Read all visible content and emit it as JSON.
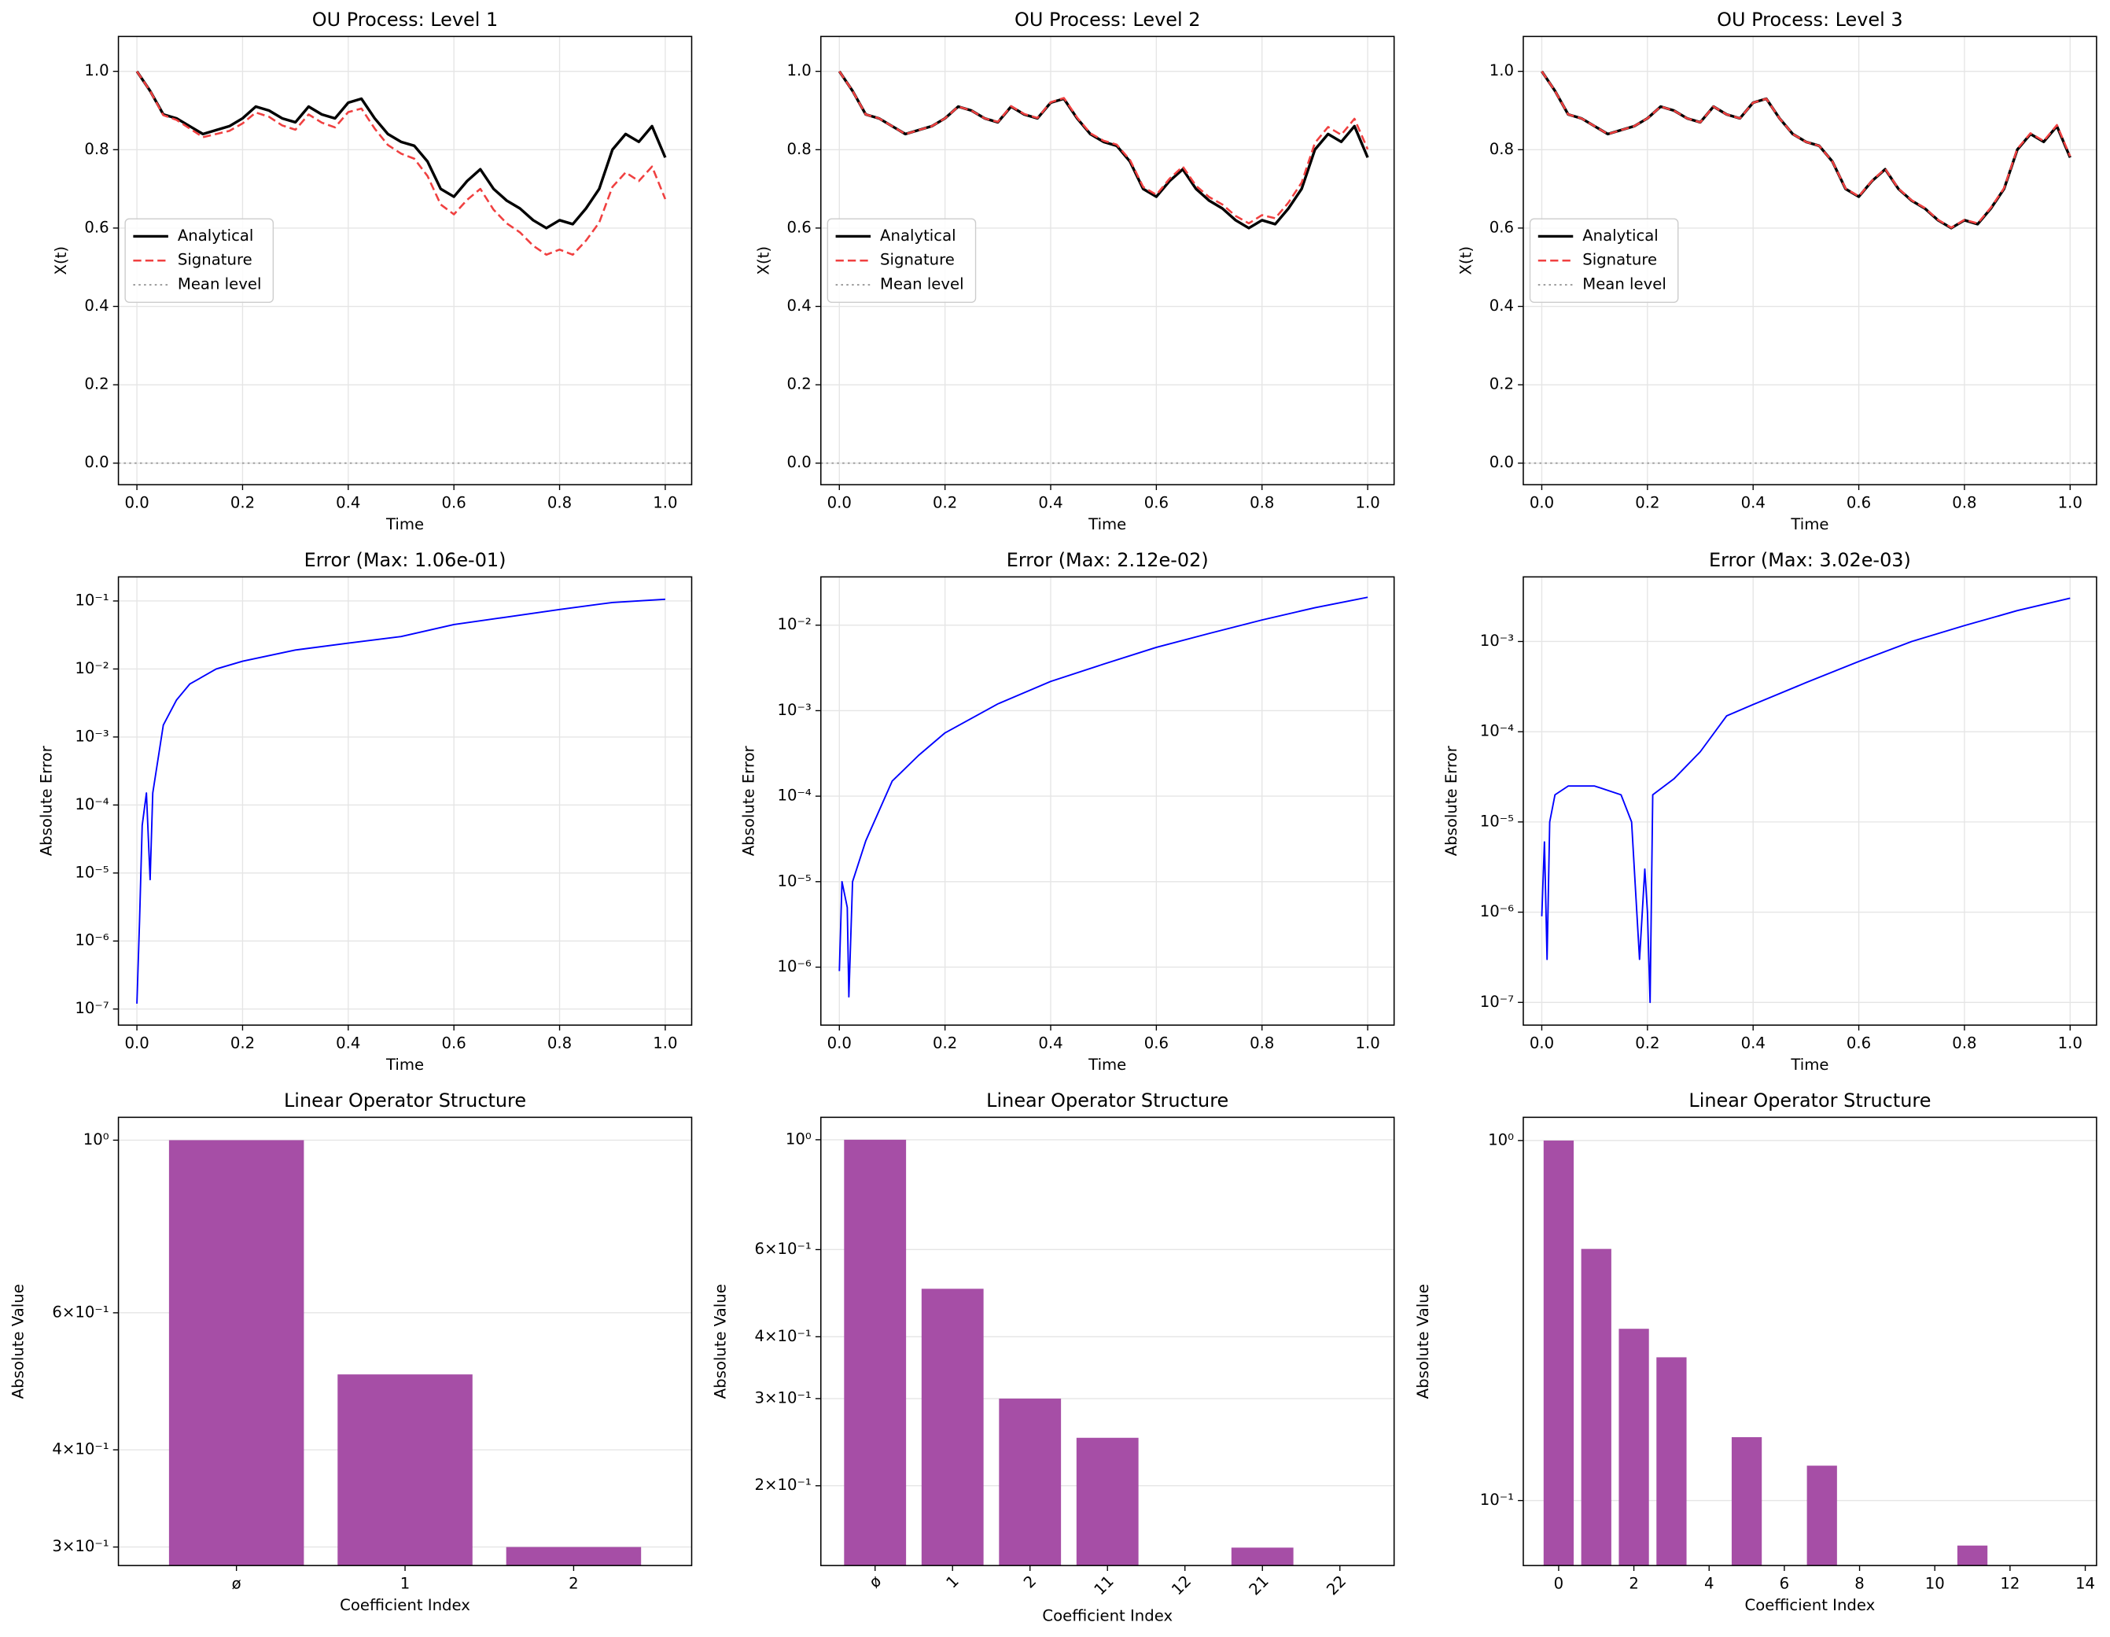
{
  "chart_data": [
    {
      "type": "line",
      "title": "OU Process: Level 1",
      "xlabel": "Time",
      "ylabel": "X(t)",
      "x": [
        0,
        0.025,
        0.05,
        0.075,
        0.1,
        0.125,
        0.15,
        0.175,
        0.2,
        0.225,
        0.25,
        0.275,
        0.3,
        0.325,
        0.35,
        0.375,
        0.4,
        0.425,
        0.45,
        0.475,
        0.5,
        0.525,
        0.55,
        0.575,
        0.6,
        0.625,
        0.65,
        0.675,
        0.7,
        0.725,
        0.75,
        0.775,
        0.8,
        0.825,
        0.85,
        0.875,
        0.9,
        0.925,
        0.95,
        0.975,
        1
      ],
      "series": [
        {
          "name": "Analytical",
          "color": "#000000",
          "dash": "solid",
          "values": [
            1.0,
            0.95,
            0.89,
            0.88,
            0.86,
            0.84,
            0.85,
            0.86,
            0.88,
            0.91,
            0.9,
            0.88,
            0.87,
            0.91,
            0.89,
            0.88,
            0.92,
            0.93,
            0.88,
            0.84,
            0.82,
            0.81,
            0.77,
            0.7,
            0.68,
            0.72,
            0.75,
            0.7,
            0.67,
            0.65,
            0.62,
            0.6,
            0.62,
            0.61,
            0.65,
            0.7,
            0.8,
            0.84,
            0.82,
            0.86,
            0.78
          ]
        },
        {
          "name": "Signature",
          "color": "#f04040",
          "dash": "dashed",
          "values": [
            1.0,
            0.95,
            0.888,
            0.876,
            0.854,
            0.832,
            0.84,
            0.848,
            0.867,
            0.895,
            0.884,
            0.862,
            0.851,
            0.89,
            0.869,
            0.857,
            0.896,
            0.905,
            0.854,
            0.812,
            0.79,
            0.777,
            0.733,
            0.66,
            0.635,
            0.672,
            0.7,
            0.647,
            0.612,
            0.589,
            0.555,
            0.532,
            0.545,
            0.532,
            0.568,
            0.614,
            0.705,
            0.742,
            0.72,
            0.757,
            0.674
          ]
        }
      ],
      "reference_line": {
        "name": "Mean level",
        "color": "#a0a0a0",
        "value": 0
      },
      "xlim": [
        -0.035,
        1.05
      ],
      "ylim": [
        -0.055,
        1.089
      ],
      "xticks": [
        {
          "value": 0,
          "label": "0.0"
        },
        0.2,
        0.4,
        0.6,
        0.8,
        {
          "value": 1,
          "label": "1.0"
        }
      ],
      "yticks": [
        {
          "value": 0,
          "label": "0.0"
        },
        0.2,
        0.4,
        0.6,
        0.8,
        {
          "value": 1,
          "label": "1.0"
        }
      ],
      "log": false,
      "grid": "both",
      "legend": "center left"
    },
    {
      "type": "line",
      "title": "OU Process: Level 2",
      "xlabel": "Time",
      "ylabel": "X(t)",
      "x": [
        0,
        0.025,
        0.05,
        0.075,
        0.1,
        0.125,
        0.15,
        0.175,
        0.2,
        0.225,
        0.25,
        0.275,
        0.3,
        0.325,
        0.35,
        0.375,
        0.4,
        0.425,
        0.45,
        0.475,
        0.5,
        0.525,
        0.55,
        0.575,
        0.6,
        0.625,
        0.65,
        0.675,
        0.7,
        0.725,
        0.75,
        0.775,
        0.8,
        0.825,
        0.85,
        0.875,
        0.9,
        0.925,
        0.95,
        0.975,
        1
      ],
      "series": [
        {
          "name": "Analytical",
          "color": "#000000",
          "dash": "solid",
          "values": [
            1.0,
            0.95,
            0.89,
            0.88,
            0.86,
            0.84,
            0.85,
            0.86,
            0.88,
            0.91,
            0.9,
            0.88,
            0.87,
            0.91,
            0.89,
            0.88,
            0.92,
            0.93,
            0.88,
            0.84,
            0.82,
            0.81,
            0.77,
            0.7,
            0.68,
            0.72,
            0.75,
            0.7,
            0.67,
            0.65,
            0.62,
            0.6,
            0.62,
            0.61,
            0.65,
            0.7,
            0.8,
            0.84,
            0.82,
            0.86,
            0.78
          ]
        },
        {
          "name": "Signature",
          "color": "#f04040",
          "dash": "dashed",
          "values": [
            1.0,
            0.95,
            0.89,
            0.88,
            0.86,
            0.84,
            0.85,
            0.86,
            0.88,
            0.91,
            0.9,
            0.88,
            0.871,
            0.911,
            0.891,
            0.881,
            0.921,
            0.932,
            0.882,
            0.842,
            0.823,
            0.813,
            0.774,
            0.705,
            0.685,
            0.726,
            0.757,
            0.708,
            0.679,
            0.66,
            0.631,
            0.612,
            0.633,
            0.625,
            0.665,
            0.716,
            0.817,
            0.858,
            0.838,
            0.879,
            0.801
          ]
        }
      ],
      "reference_line": {
        "name": "Mean level",
        "color": "#a0a0a0",
        "value": 0
      },
      "xlim": [
        -0.035,
        1.05
      ],
      "ylim": [
        -0.055,
        1.089
      ],
      "xticks": [
        {
          "value": 0,
          "label": "0.0"
        },
        0.2,
        0.4,
        0.6,
        0.8,
        {
          "value": 1,
          "label": "1.0"
        }
      ],
      "yticks": [
        {
          "value": 0,
          "label": "0.0"
        },
        0.2,
        0.4,
        0.6,
        0.8,
        {
          "value": 1,
          "label": "1.0"
        }
      ],
      "log": false,
      "grid": "both",
      "legend": "center left"
    },
    {
      "type": "line",
      "title": "OU Process: Level 3",
      "xlabel": "Time",
      "ylabel": "X(t)",
      "x": [
        0,
        0.025,
        0.05,
        0.075,
        0.1,
        0.125,
        0.15,
        0.175,
        0.2,
        0.225,
        0.25,
        0.275,
        0.3,
        0.325,
        0.35,
        0.375,
        0.4,
        0.425,
        0.45,
        0.475,
        0.5,
        0.525,
        0.55,
        0.575,
        0.6,
        0.625,
        0.65,
        0.675,
        0.7,
        0.725,
        0.75,
        0.775,
        0.8,
        0.825,
        0.85,
        0.875,
        0.9,
        0.925,
        0.95,
        0.975,
        1
      ],
      "series": [
        {
          "name": "Analytical",
          "color": "#000000",
          "dash": "solid",
          "values": [
            1.0,
            0.95,
            0.89,
            0.88,
            0.86,
            0.84,
            0.85,
            0.86,
            0.88,
            0.91,
            0.9,
            0.88,
            0.87,
            0.91,
            0.89,
            0.88,
            0.92,
            0.93,
            0.88,
            0.84,
            0.82,
            0.81,
            0.77,
            0.7,
            0.68,
            0.72,
            0.75,
            0.7,
            0.67,
            0.65,
            0.62,
            0.6,
            0.62,
            0.61,
            0.65,
            0.7,
            0.8,
            0.84,
            0.82,
            0.86,
            0.78
          ]
        },
        {
          "name": "Signature",
          "color": "#f04040",
          "dash": "dashed",
          "values": [
            1.0,
            0.95,
            0.89,
            0.88,
            0.86,
            0.84,
            0.85,
            0.86,
            0.88,
            0.91,
            0.9,
            0.88,
            0.87,
            0.91,
            0.89,
            0.88,
            0.92,
            0.93,
            0.88,
            0.84,
            0.82,
            0.81,
            0.77,
            0.701,
            0.681,
            0.721,
            0.751,
            0.701,
            0.671,
            0.651,
            0.621,
            0.601,
            0.621,
            0.612,
            0.652,
            0.702,
            0.802,
            0.842,
            0.822,
            0.863,
            0.783
          ]
        }
      ],
      "reference_line": {
        "name": "Mean level",
        "color": "#a0a0a0",
        "value": 0
      },
      "xlim": [
        -0.035,
        1.05
      ],
      "ylim": [
        -0.055,
        1.089
      ],
      "xticks": [
        {
          "value": 0,
          "label": "0.0"
        },
        0.2,
        0.4,
        0.6,
        0.8,
        {
          "value": 1,
          "label": "1.0"
        }
      ],
      "yticks": [
        {
          "value": 0,
          "label": "0.0"
        },
        0.2,
        0.4,
        0.6,
        0.8,
        {
          "value": 1,
          "label": "1.0"
        }
      ],
      "log": false,
      "grid": "both",
      "legend": "center left"
    },
    {
      "type": "line",
      "title": "Error (Max: 1.06e-01)",
      "xlabel": "Time",
      "ylabel": "Absolute Error",
      "x": [
        0,
        0.005,
        0.01,
        0.018,
        0.025,
        0.03,
        0.05,
        0.075,
        0.1,
        0.15,
        0.2,
        0.3,
        0.4,
        0.5,
        0.6,
        0.7,
        0.8,
        0.9,
        1.0
      ],
      "series": [
        {
          "color": "#0000ff",
          "dash": "solid",
          "values": [
            1.2e-07,
            2e-06,
            5e-05,
            0.00015,
            8e-06,
            0.00015,
            0.0015,
            0.0035,
            0.006,
            0.01,
            0.013,
            0.019,
            0.024,
            0.03,
            0.045,
            0.058,
            0.075,
            0.095,
            0.106
          ]
        }
      ],
      "xlim": [
        -0.035,
        1.05
      ],
      "ylim": [
        5.8e-08,
        0.226
      ],
      "xticks": [
        {
          "value": 0,
          "label": "0.0"
        },
        0.2,
        0.4,
        0.6,
        0.8,
        {
          "value": 1,
          "label": "1.0"
        }
      ],
      "yticks": [
        {
          "value": 1e-07,
          "label": "10⁻⁷"
        },
        {
          "value": 1e-06,
          "label": "10⁻⁶"
        },
        {
          "value": 1e-05,
          "label": "10⁻⁵"
        },
        {
          "value": 0.0001,
          "label": "10⁻⁴"
        },
        {
          "value": 0.001,
          "label": "10⁻³"
        },
        {
          "value": 0.01,
          "label": "10⁻²"
        },
        {
          "value": 0.1,
          "label": "10⁻¹"
        }
      ],
      "log": true,
      "grid": "both"
    },
    {
      "type": "line",
      "title": "Error (Max: 2.12e-02)",
      "xlabel": "Time",
      "ylabel": "Absolute Error",
      "x": [
        0,
        0.005,
        0.015,
        0.018,
        0.025,
        0.05,
        0.1,
        0.15,
        0.2,
        0.3,
        0.4,
        0.5,
        0.6,
        0.7,
        0.8,
        0.9,
        1.0
      ],
      "series": [
        {
          "color": "#0000ff",
          "dash": "solid",
          "values": [
            9e-07,
            1e-05,
            5e-06,
            4.5e-07,
            1e-05,
            3e-05,
            0.00015,
            0.0003,
            0.00055,
            0.0012,
            0.0022,
            0.0035,
            0.0055,
            0.008,
            0.0115,
            0.016,
            0.0212
          ]
        }
      ],
      "xlim": [
        -0.035,
        1.05
      ],
      "ylim": [
        2.1e-07,
        0.0367
      ],
      "xticks": [
        {
          "value": 0,
          "label": "0.0"
        },
        0.2,
        0.4,
        0.6,
        0.8,
        {
          "value": 1,
          "label": "1.0"
        }
      ],
      "yticks": [
        {
          "value": 1e-06,
          "label": "10⁻⁶"
        },
        {
          "value": 1e-05,
          "label": "10⁻⁵"
        },
        {
          "value": 0.0001,
          "label": "10⁻⁴"
        },
        {
          "value": 0.001,
          "label": "10⁻³"
        },
        {
          "value": 0.01,
          "label": "10⁻²"
        }
      ],
      "log": true,
      "grid": "both"
    },
    {
      "type": "line",
      "title": "Error (Max: 3.02e-03)",
      "xlabel": "Time",
      "ylabel": "Absolute Error",
      "x": [
        0,
        0.005,
        0.01,
        0.015,
        0.025,
        0.05,
        0.1,
        0.15,
        0.17,
        0.185,
        0.195,
        0.2,
        0.205,
        0.21,
        0.25,
        0.3,
        0.35,
        0.4,
        0.5,
        0.6,
        0.7,
        0.8,
        0.9,
        1.0
      ],
      "series": [
        {
          "color": "#0000ff",
          "dash": "solid",
          "values": [
            9e-07,
            6e-06,
            3e-07,
            1e-05,
            2e-05,
            2.5e-05,
            2.5e-05,
            2e-05,
            1e-05,
            3e-07,
            3e-06,
            1e-06,
            1e-07,
            2e-05,
            3e-05,
            6e-05,
            0.00015,
            0.0002,
            0.00035,
            0.0006,
            0.001,
            0.0015,
            0.0022,
            0.00302
          ]
        }
      ],
      "xlim": [
        -0.035,
        1.05
      ],
      "ylim": [
        5.6e-08,
        0.0052
      ],
      "xticks": [
        {
          "value": 0,
          "label": "0.0"
        },
        0.2,
        0.4,
        0.6,
        0.8,
        {
          "value": 1,
          "label": "1.0"
        }
      ],
      "yticks": [
        {
          "value": 1e-07,
          "label": "10⁻⁷"
        },
        {
          "value": 1e-06,
          "label": "10⁻⁶"
        },
        {
          "value": 1e-05,
          "label": "10⁻⁵"
        },
        {
          "value": 0.0001,
          "label": "10⁻⁴"
        },
        {
          "value": 0.001,
          "label": "10⁻³"
        }
      ],
      "log": true,
      "grid": "both"
    },
    {
      "type": "bar",
      "title": "Linear Operator Structure",
      "xlabel": "Coefficient Index",
      "ylabel": "Absolute Value",
      "categories": [
        "ø",
        "1",
        "2"
      ],
      "values": [
        1.0,
        0.5,
        0.3
      ],
      "color": "#a64ea6",
      "ylim": [
        0.284,
        1.07
      ],
      "yticks": [
        {
          "value": 0.3,
          "label": "3×10⁻¹"
        },
        {
          "value": 0.4,
          "label": "4×10⁻¹"
        },
        {
          "value": 0.6,
          "label": "6×10⁻¹"
        },
        {
          "value": 1,
          "label": "10⁰"
        }
      ],
      "log": true,
      "grid": "y"
    },
    {
      "type": "bar",
      "title": "Linear Operator Structure",
      "xlabel": "Coefficient Index",
      "ylabel": "Absolute Value",
      "categories": [
        "ø",
        "1",
        "2",
        "11",
        "12",
        "21",
        "22"
      ],
      "values": [
        1.0,
        0.5,
        0.3,
        0.25,
        null,
        0.15,
        null
      ],
      "color": "#a64ea6",
      "ylim": [
        0.138,
        1.11
      ],
      "yticks": [
        {
          "value": 0.2,
          "label": "2×10⁻¹"
        },
        {
          "value": 0.3,
          "label": "3×10⁻¹"
        },
        {
          "value": 0.4,
          "label": "4×10⁻¹"
        },
        {
          "value": 0.6,
          "label": "6×10⁻¹"
        },
        {
          "value": 1,
          "label": "10⁰"
        }
      ],
      "log": true,
      "grid": "y",
      "xtick_rotation": 45
    },
    {
      "type": "bar",
      "title": "Linear Operator Structure",
      "xlabel": "Coefficient Index",
      "ylabel": "Absolute Value",
      "x": [
        0,
        1,
        2,
        3,
        4,
        5,
        6,
        7,
        8,
        9,
        10,
        11,
        12,
        13,
        14
      ],
      "values": [
        1.0,
        0.5,
        0.3,
        0.25,
        null,
        0.15,
        null,
        0.125,
        null,
        null,
        null,
        0.075,
        null,
        null,
        null
      ],
      "color": "#a64ea6",
      "xlim": [
        -0.94,
        14.3
      ],
      "xticks": [
        0,
        2,
        4,
        6,
        8,
        10,
        12,
        14
      ],
      "ylim": [
        0.066,
        1.16
      ],
      "yticks": [
        {
          "value": 0.1,
          "label": "10⁻¹"
        },
        {
          "value": 1,
          "label": "10⁰"
        }
      ],
      "log": true,
      "grid": "y"
    }
  ]
}
